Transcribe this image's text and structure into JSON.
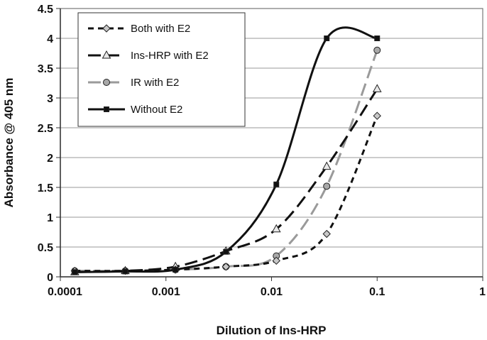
{
  "chart_data": {
    "type": "line",
    "xlabel": "Dilution of Ins-HRP",
    "ylabel": "Absorbance @ 405 nm",
    "xscale": "log",
    "xlim": [
      0.0001,
      1
    ],
    "ylim": [
      0,
      4.5
    ],
    "x_tick_labels": [
      "0.0001",
      "0.001",
      "0.01",
      "0.1",
      "1"
    ],
    "y_tick_labels": [
      "0",
      "0.5",
      "1",
      "1.5",
      "2",
      "2.5",
      "3",
      "3.5",
      "4",
      "4.5"
    ],
    "grid": "horizontal",
    "legend_position": "top-left",
    "series": [
      {
        "name": "Both with E2",
        "color": "#111111",
        "line_style": "dashed",
        "marker": "diamond",
        "x": [
          0.000137,
          0.000412,
          0.00123,
          0.0037,
          0.0111,
          0.0333,
          0.1
        ],
        "y": [
          0.1,
          0.1,
          0.12,
          0.17,
          0.27,
          0.72,
          2.7
        ]
      },
      {
        "name": "Ins-HRP with E2",
        "color": "#111111",
        "line_style": "long-dash",
        "marker": "triangle",
        "x": [
          0.000137,
          0.000412,
          0.00123,
          0.0037,
          0.0111,
          0.0333,
          0.1
        ],
        "y": [
          0.08,
          0.1,
          0.17,
          0.43,
          0.8,
          1.85,
          3.15
        ]
      },
      {
        "name": "IR with E2",
        "color": "#9a9a9a",
        "line_style": "long-dash",
        "marker": "circle",
        "x": [
          0.000137,
          0.000412,
          0.00123,
          0.0037,
          0.0111,
          0.0333,
          0.1
        ],
        "y": [
          0.1,
          0.1,
          0.12,
          0.17,
          0.35,
          1.52,
          3.8
        ]
      },
      {
        "name": "Without E2",
        "color": "#111111",
        "line_style": "solid",
        "marker": "square",
        "x": [
          0.000137,
          0.000412,
          0.00123,
          0.0037,
          0.0111,
          0.0333,
          0.1
        ],
        "y": [
          0.08,
          0.09,
          0.12,
          0.42,
          1.55,
          4.0,
          4.0
        ]
      }
    ]
  }
}
